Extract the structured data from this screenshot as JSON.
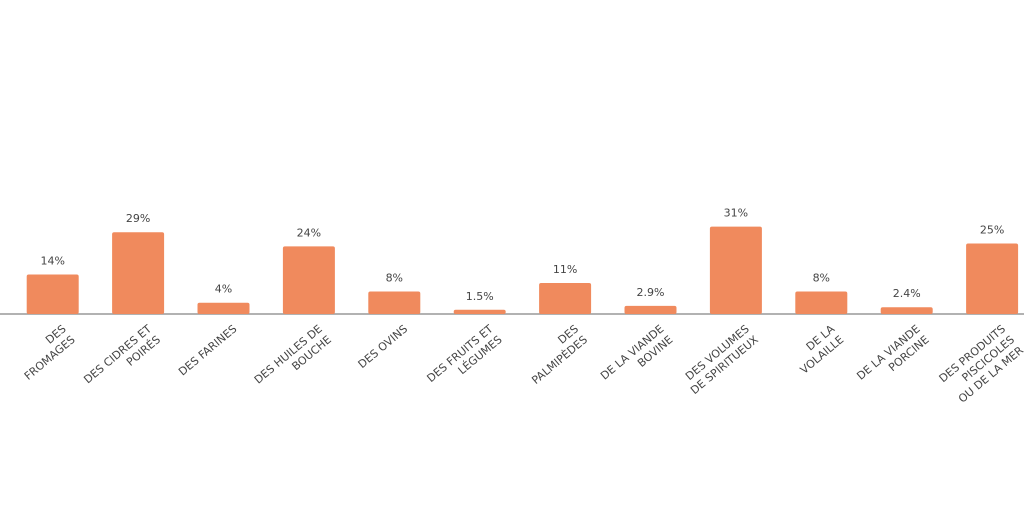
{
  "chart_data": {
    "type": "bar",
    "categories": [
      [
        "DES",
        "FROMAGES"
      ],
      [
        "DES CIDRES ET",
        "POIRÉS"
      ],
      [
        "DES FARINES"
      ],
      [
        "DES HUILES DE",
        "BOUCHE"
      ],
      [
        "DES OVINS"
      ],
      [
        "DES FRUITS ET",
        "LÉGUMES"
      ],
      [
        "DES",
        "PALMIPÈDES"
      ],
      [
        "DE LA VIANDE",
        "BOVINE"
      ],
      [
        "DES VOLUMES",
        "DE SPIRITUEUX"
      ],
      [
        "DE LA",
        "VOLAILLE"
      ],
      [
        "DE LA VIANDE",
        "PORCINE"
      ],
      [
        "DES PRODUITS",
        "PISCICOLES",
        "OU DE LA MER"
      ]
    ],
    "values": [
      14,
      29,
      4,
      24,
      8,
      1.5,
      11,
      2.9,
      31,
      8,
      2.4,
      25
    ],
    "value_labels": [
      "14%",
      "29%",
      "4%",
      "24%",
      "8%",
      "1.5%",
      "11%",
      "2.9%",
      "31%",
      "8%",
      "2.4%",
      "25%"
    ],
    "color": "#f08a5d"
  }
}
